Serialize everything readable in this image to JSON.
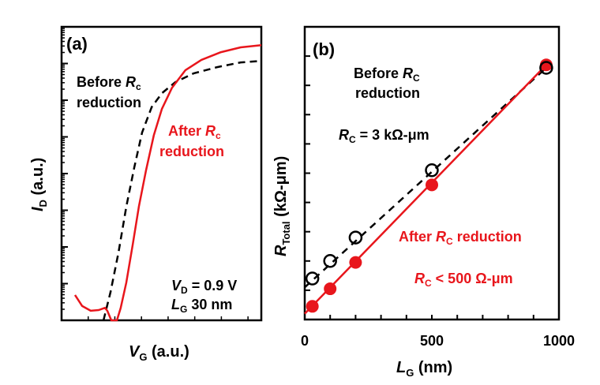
{
  "chart_data": [
    {
      "type": "line",
      "panel_label": "(a)",
      "title": "",
      "xlabel": {
        "main": "V",
        "sub": "G",
        "rest": " (a.u.)"
      },
      "ylabel": {
        "main": "I",
        "sub": "D",
        "rest": " (a.u.)"
      },
      "yscale": "log",
      "xlim": [
        0,
        1
      ],
      "ylim_decades": [
        0,
        8
      ],
      "x_ticks_labeled": false,
      "y_ticks_labeled": false,
      "grid": false,
      "series": [
        {
          "name": "Before Rc reduction",
          "style": "dashed",
          "color": "#000000",
          "points": [
            [
              0.21,
              0.0
            ],
            [
              0.245,
              0.77
            ],
            [
              0.285,
              1.85
            ],
            [
              0.324,
              3.1
            ],
            [
              0.364,
              4.17
            ],
            [
              0.403,
              5.12
            ],
            [
              0.451,
              5.81
            ],
            [
              0.502,
              6.19
            ],
            [
              0.569,
              6.49
            ],
            [
              0.66,
              6.73
            ],
            [
              0.779,
              6.9
            ],
            [
              0.897,
              7.03
            ],
            [
              1.0,
              7.07
            ]
          ]
        },
        {
          "name": "After Rc reduction",
          "style": "solid",
          "color": "#e8161c",
          "points": [
            [
              0.067,
              0.69
            ],
            [
              0.103,
              0.39
            ],
            [
              0.146,
              0.26
            ],
            [
              0.186,
              0.28
            ],
            [
              0.217,
              0.34
            ],
            [
              0.229,
              0.26
            ],
            [
              0.249,
              0.0
            ],
            [
              0.277,
              0.0
            ],
            [
              0.296,
              0.34
            ],
            [
              0.324,
              1.03
            ],
            [
              0.356,
              2.06
            ],
            [
              0.387,
              3.1
            ],
            [
              0.423,
              4.09
            ],
            [
              0.462,
              5.05
            ],
            [
              0.502,
              5.76
            ],
            [
              0.553,
              6.34
            ],
            [
              0.62,
              6.82
            ],
            [
              0.7,
              7.1
            ],
            [
              0.798,
              7.31
            ],
            [
              0.897,
              7.44
            ],
            [
              1.0,
              7.5
            ]
          ]
        }
      ],
      "annotations": [
        {
          "id": "before",
          "parts": [
            "Before ",
            "R",
            "c",
            ""
          ],
          "line2": "reduction",
          "color": "#000000"
        },
        {
          "id": "after",
          "parts": [
            "After ",
            "R",
            "c",
            ""
          ],
          "line2": "reduction",
          "color": "#e8161c"
        },
        {
          "id": "vd",
          "text_main": "V",
          "text_sub": "D",
          "text_rest": " = 0.9 V",
          "color": "#000000"
        },
        {
          "id": "lg",
          "text_main": "L",
          "text_sub": "G",
          "text_rest": " 30 nm",
          "color": "#000000"
        }
      ]
    },
    {
      "type": "scatter",
      "panel_label": "(b)",
      "title": "",
      "xlabel": {
        "main": "L",
        "sub": "G",
        "rest": " (nm)"
      },
      "ylabel": {
        "main": "R",
        "sub": "Total",
        "rest": " (kΩ-μm)"
      },
      "xlim": [
        0,
        1000
      ],
      "ylim": [
        0,
        10
      ],
      "x_tick_labels": [
        "0",
        "500",
        "1000"
      ],
      "x_tick_values": [
        0,
        500,
        1000
      ],
      "x_minor_ticks": [
        100,
        200,
        300,
        400,
        600,
        700,
        800,
        900
      ],
      "y_ticks": [
        1,
        2,
        3,
        4,
        5,
        6,
        7,
        8,
        9
      ],
      "y_ticks_labeled": false,
      "grid": false,
      "series": [
        {
          "name": "Before RC reduction",
          "marker": "open-circle",
          "line": "dashed",
          "color": "#000000",
          "x": [
            30,
            100,
            200,
            500,
            950
          ],
          "y": [
            1.4,
            2.0,
            2.8,
            5.1,
            8.6
          ],
          "fit": [
            [
              0,
              1.1
            ],
            [
              950,
              8.6
            ]
          ]
        },
        {
          "name": "After RC reduction",
          "marker": "filled-circle",
          "line": "solid",
          "color": "#e8161c",
          "x": [
            30,
            100,
            200,
            500,
            950
          ],
          "y": [
            0.45,
            1.05,
            1.95,
            4.6,
            8.7
          ],
          "fit": [
            [
              0,
              0.2
            ],
            [
              950,
              8.7
            ]
          ]
        }
      ],
      "annotations": [
        {
          "id": "before",
          "line1_a": "Before ",
          "line1_r": "R",
          "line1_sub": "C",
          "line2": "reduction",
          "color": "#000000"
        },
        {
          "id": "rc_before",
          "r": "R",
          "sub": "C",
          "rest": " = 3 kΩ-μm",
          "color": "#000000"
        },
        {
          "id": "after",
          "a": "After ",
          "r": "R",
          "sub": "C",
          "rest": " reduction",
          "color": "#e8161c"
        },
        {
          "id": "rc_after",
          "r": "R",
          "sub": "C",
          "rest": " < 500 Ω-μm",
          "color": "#e8161c"
        }
      ]
    }
  ]
}
